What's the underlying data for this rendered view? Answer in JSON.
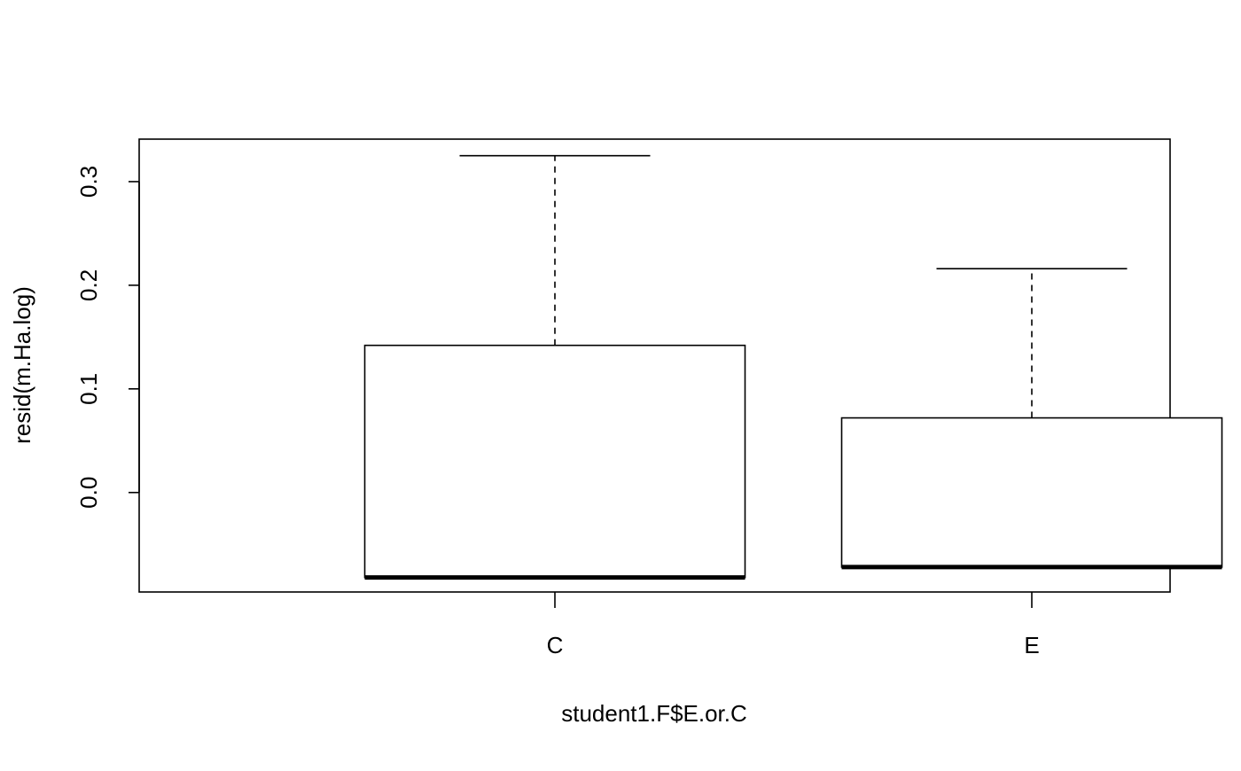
{
  "chart_data": {
    "type": "boxplot",
    "title": "",
    "xlabel": "student1.F$E.or.C",
    "ylabel": "resid(m.Ha.log)",
    "categories": [
      "C",
      "E"
    ],
    "boxes": [
      {
        "category": "C",
        "min": -0.082,
        "q1": -0.082,
        "median": -0.082,
        "q3": 0.142,
        "max": 0.325
      },
      {
        "category": "E",
        "min": -0.072,
        "q1": -0.072,
        "median": -0.072,
        "q3": 0.072,
        "max": 0.216
      }
    ],
    "ylim": [
      -0.096,
      0.341
    ],
    "yticks": [
      0.0,
      0.1,
      0.2,
      0.3
    ],
    "ytick_labels": [
      "0.0",
      "0.1",
      "0.2",
      "0.3"
    ],
    "grid": false,
    "legend": "none"
  }
}
